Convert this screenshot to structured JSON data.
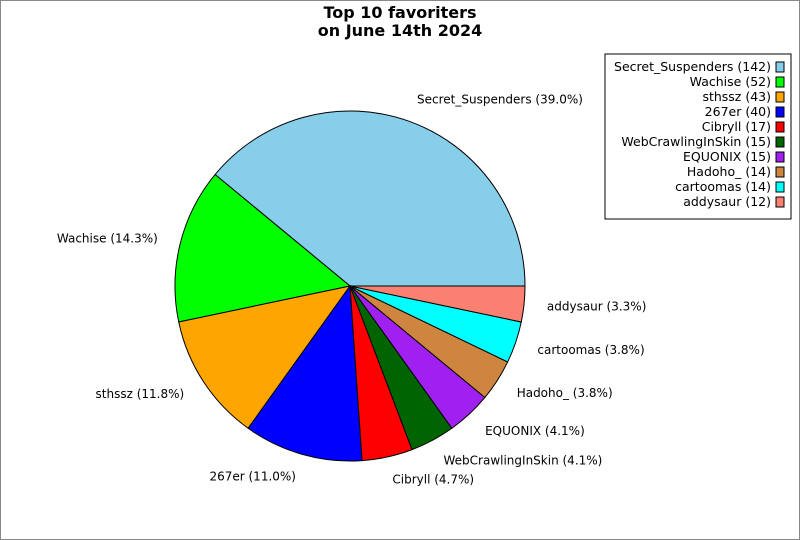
{
  "chart_data": {
    "type": "pie",
    "title": [
      "Top 10 favoriters",
      "on June 14th 2024"
    ],
    "legend_position": "top-right",
    "start_angle_deg": 0,
    "direction": "counterclockwise",
    "slices": [
      {
        "name": "Secret_Suspenders",
        "value": 142,
        "percent": "39.0%",
        "color": "#87CEEB"
      },
      {
        "name": "Wachise",
        "value": 52,
        "percent": "14.3%",
        "color": "#00FF00"
      },
      {
        "name": "sthssz",
        "value": 43,
        "percent": "11.8%",
        "color": "#FFA500"
      },
      {
        "name": "267er",
        "value": 40,
        "percent": "11.0%",
        "color": "#0000FF"
      },
      {
        "name": "Cibryll",
        "value": 17,
        "percent": "4.7%",
        "color": "#FF0000"
      },
      {
        "name": "WebCrawlingInSkin",
        "value": 15,
        "percent": "4.1%",
        "color": "#006400"
      },
      {
        "name": "EQUONIX",
        "value": 15,
        "percent": "4.1%",
        "color": "#A020F0"
      },
      {
        "name": "Hadoho_",
        "value": 14,
        "percent": "3.8%",
        "color": "#CD853F"
      },
      {
        "name": "cartoomas",
        "value": 14,
        "percent": "3.8%",
        "color": "#00FFFF"
      },
      {
        "name": "addysaur",
        "value": 12,
        "percent": "3.3%",
        "color": "#FA8072"
      }
    ]
  }
}
